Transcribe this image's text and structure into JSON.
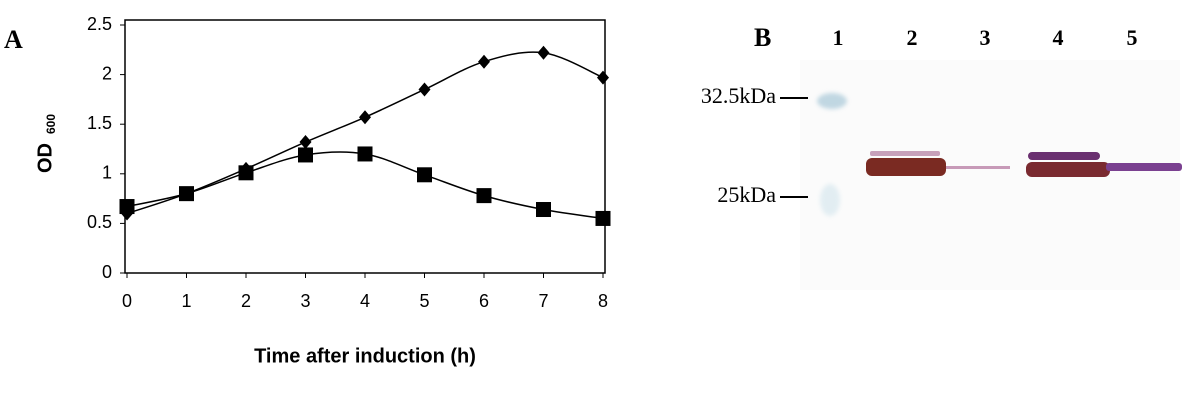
{
  "chart_data": {
    "type": "line",
    "panel_label": "A",
    "xlabel": "Time after induction (h)",
    "ylabel": "OD",
    "ylabel_subscript": "600",
    "x": [
      0,
      1,
      2,
      3,
      4,
      5,
      6,
      7,
      8
    ],
    "series": [
      {
        "color": "#000000",
        "marker": "diamond",
        "values": [
          0.6,
          0.8,
          1.05,
          1.32,
          1.57,
          1.85,
          2.13,
          2.22,
          1.97
        ]
      },
      {
        "color": "#000000",
        "marker": "square",
        "values": [
          0.67,
          0.8,
          1.01,
          1.19,
          1.2,
          0.99,
          0.78,
          0.64,
          0.55
        ]
      }
    ],
    "xlim": [
      0,
      8
    ],
    "xticks": [
      0,
      1,
      2,
      3,
      4,
      5,
      6,
      7,
      8
    ],
    "ylim": [
      0,
      2.5
    ],
    "yticks": [
      0,
      0.5,
      1,
      1.5,
      2,
      2.5
    ],
    "grid": false
  },
  "panel_b": {
    "panel_label": "B",
    "lanes": [
      "1",
      "2",
      "3",
      "4",
      "5"
    ],
    "markers": [
      "32.5kDa",
      "25kDa"
    ]
  }
}
